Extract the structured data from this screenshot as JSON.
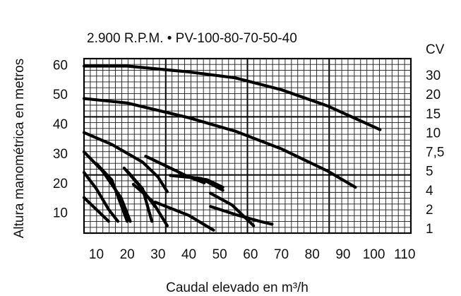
{
  "chart_data": {
    "type": "line",
    "title": "2.900 R.P.M. • PV-100-80-70-50-40",
    "xlabel": "Caudal elevado en m³/h",
    "ylabel": "Altura manométrica en metros",
    "right_axis_title": "CV",
    "xlim": [
      6,
      112
    ],
    "ylim": [
      3,
      62
    ],
    "grid": true,
    "x_ticks": [
      "10",
      "20",
      "30",
      "40",
      "50",
      "60",
      "70",
      "80",
      "90",
      "100",
      "110"
    ],
    "y_ticks": [
      "10",
      "20",
      "30",
      "40",
      "50",
      "60"
    ],
    "power_ticks": [
      "30",
      "20",
      "15",
      "10",
      "7,5",
      "5",
      "4",
      "2",
      "1"
    ],
    "series": [
      {
        "x": [
          6,
          20,
          40,
          55,
          70,
          85,
          102
        ],
        "y": [
          59.5,
          59.5,
          57.5,
          55.5,
          51.5,
          46,
          38
        ]
      },
      {
        "x": [
          6,
          20,
          40,
          55,
          70,
          85,
          94
        ],
        "y": [
          48.5,
          47,
          42,
          37.5,
          31.5,
          24,
          18.5
        ]
      },
      {
        "x": [
          6,
          15,
          25,
          30,
          33
        ],
        "y": [
          37,
          33,
          27,
          22,
          17
        ]
      },
      {
        "x": [
          6,
          12,
          18,
          21
        ],
        "y": [
          30.5,
          24,
          15,
          7
        ]
      },
      {
        "x": [
          6,
          10,
          14,
          17
        ],
        "y": [
          23.5,
          18,
          11,
          7
        ]
      },
      {
        "x": [
          6,
          10,
          14
        ],
        "y": [
          15,
          11,
          7
        ]
      },
      {
        "x": [
          10,
          15,
          20
        ],
        "y": [
          26.5,
          21,
          7
        ]
      },
      {
        "x": [
          20,
          25,
          28
        ],
        "y": [
          24,
          18,
          7
        ]
      },
      {
        "x": [
          19,
          24,
          29
        ],
        "y": [
          25,
          19,
          12
        ]
      },
      {
        "x": [
          22,
          28,
          33
        ],
        "y": [
          19.5,
          14,
          5.5
        ]
      },
      {
        "x": [
          29,
          40,
          48
        ],
        "y": [
          13.5,
          9,
          4
        ]
      },
      {
        "x": [
          26,
          33,
          40,
          45
        ],
        "y": [
          29,
          25.5,
          22,
          20
        ]
      },
      {
        "x": [
          34,
          44,
          51
        ],
        "y": [
          22.5,
          21.5,
          17.5
        ]
      },
      {
        "x": [
          40,
          46,
          51
        ],
        "y": [
          22,
          21,
          18.5
        ]
      },
      {
        "x": [
          47,
          54,
          61
        ],
        "y": [
          16.5,
          12.5,
          5.5
        ]
      },
      {
        "x": [
          47,
          56,
          63,
          67
        ],
        "y": [
          12,
          9,
          7,
          6
        ]
      }
    ]
  }
}
